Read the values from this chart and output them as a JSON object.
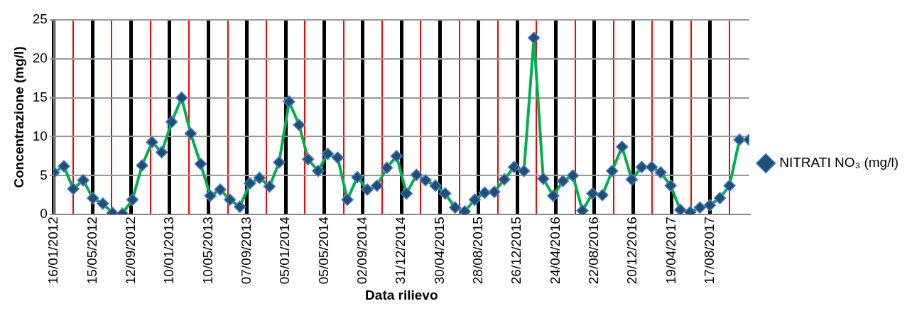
{
  "chart_data": {
    "type": "line",
    "xlabel": "Data rilievo",
    "ylabel": "Concentrazione (mg/l)",
    "x": [
      "2012-01-16",
      "2012-02-16",
      "2012-03-16",
      "2012-04-16",
      "2012-05-16",
      "2012-06-16",
      "2012-07-16",
      "2012-08-16",
      "2012-09-16",
      "2012-10-16",
      "2012-11-16",
      "2012-12-16",
      "2013-01-16",
      "2013-02-16",
      "2013-03-16",
      "2013-04-16",
      "2013-05-16",
      "2013-06-16",
      "2013-07-16",
      "2013-08-16",
      "2013-09-16",
      "2013-10-16",
      "2013-11-16",
      "2013-12-16",
      "2014-01-16",
      "2014-02-16",
      "2014-03-16",
      "2014-04-16",
      "2014-05-16",
      "2014-06-16",
      "2014-07-16",
      "2014-08-16",
      "2014-09-16",
      "2014-10-16",
      "2014-11-16",
      "2014-12-16",
      "2015-01-16",
      "2015-02-16",
      "2015-03-16",
      "2015-04-16",
      "2015-05-16",
      "2015-06-16",
      "2015-07-16",
      "2015-08-16",
      "2015-09-16",
      "2015-10-16",
      "2015-11-16",
      "2015-12-16",
      "2016-01-16",
      "2016-02-16",
      "2016-03-16",
      "2016-04-16",
      "2016-05-16",
      "2016-06-16",
      "2016-07-16",
      "2016-08-16",
      "2016-09-16",
      "2016-10-16",
      "2016-11-16",
      "2016-12-16",
      "2017-01-16",
      "2017-02-16",
      "2017-03-16",
      "2017-04-16",
      "2017-05-16",
      "2017-06-16",
      "2017-07-16",
      "2017-08-16",
      "2017-09-16",
      "2017-10-16",
      "2017-11-16",
      "2017-12-16"
    ],
    "series": [
      {
        "name": "NITRATI NO₃ (mg/l)",
        "color": "#00b050",
        "values": [
          5.4,
          6.2,
          3.3,
          4.4,
          2.1,
          1.4,
          0.2,
          0.1,
          1.9,
          6.3,
          9.3,
          8.0,
          11.9,
          15.0,
          10.4,
          6.5,
          2.4,
          3.2,
          1.9,
          1.0,
          4.0,
          4.7,
          3.6,
          6.7,
          14.5,
          11.5,
          7.1,
          5.6,
          7.8,
          7.3,
          1.9,
          4.8,
          3.2,
          3.7,
          6.0,
          7.5,
          2.7,
          5.1,
          4.4,
          3.7,
          2.7,
          0.9,
          0.4,
          1.9,
          2.8,
          2.9,
          4.5,
          6.1,
          5.6,
          22.7,
          4.6,
          2.4,
          4.3,
          5.0,
          0.5,
          2.7,
          2.5,
          5.6,
          8.7,
          4.5,
          6.1,
          6.1,
          5.4,
          3.7,
          0.6,
          0.3,
          0.9,
          1.2,
          2.1,
          3.7,
          9.6,
          9.6
        ]
      }
    ],
    "xlim": [
      "2012-01-16",
      "2017-12-16"
    ],
    "xticks": [
      {
        "value": "2012-01-16",
        "label": "16/01/2012"
      },
      {
        "value": "2012-03-16",
        "label": null
      },
      {
        "value": "2012-05-15",
        "label": "15/05/2012"
      },
      {
        "value": "2012-07-14",
        "label": null
      },
      {
        "value": "2012-09-12",
        "label": "12/09/2012"
      },
      {
        "value": "2012-11-11",
        "label": null
      },
      {
        "value": "2013-01-10",
        "label": "10/01/2013"
      },
      {
        "value": "2013-03-11",
        "label": null
      },
      {
        "value": "2013-05-10",
        "label": "10/05/2013"
      },
      {
        "value": "2013-07-09",
        "label": null
      },
      {
        "value": "2013-09-07",
        "label": "07/09/2013"
      },
      {
        "value": "2013-11-06",
        "label": null
      },
      {
        "value": "2014-01-05",
        "label": "05/01/2014"
      },
      {
        "value": "2014-03-06",
        "label": null
      },
      {
        "value": "2014-05-05",
        "label": "05/05/2014"
      },
      {
        "value": "2014-07-04",
        "label": null
      },
      {
        "value": "2014-09-02",
        "label": "02/09/2014"
      },
      {
        "value": "2014-11-01",
        "label": null
      },
      {
        "value": "2014-12-31",
        "label": "31/12/2014"
      },
      {
        "value": "2015-03-01",
        "label": null
      },
      {
        "value": "2015-04-30",
        "label": "30/04/2015"
      },
      {
        "value": "2015-06-29",
        "label": null
      },
      {
        "value": "2015-08-28",
        "label": "28/08/2015"
      },
      {
        "value": "2015-10-27",
        "label": null
      },
      {
        "value": "2015-12-26",
        "label": "26/12/2015"
      },
      {
        "value": "2016-02-24",
        "label": null
      },
      {
        "value": "2016-04-24",
        "label": "24/04/2016"
      },
      {
        "value": "2016-06-23",
        "label": null
      },
      {
        "value": "2016-08-22",
        "label": "22/08/2016"
      },
      {
        "value": "2016-10-21",
        "label": null
      },
      {
        "value": "2016-12-20",
        "label": "20/12/2016"
      },
      {
        "value": "2017-02-18",
        "label": null
      },
      {
        "value": "2017-04-19",
        "label": "19/04/2017"
      },
      {
        "value": "2017-06-18",
        "label": null
      },
      {
        "value": "2017-08-17",
        "label": "17/08/2017"
      },
      {
        "value": "2017-10-16",
        "label": null
      }
    ],
    "ylim": [
      0,
      25
    ],
    "yticks": [
      0,
      5,
      10,
      15,
      20,
      25
    ],
    "grid": true,
    "legend": "right",
    "marker": "diamond",
    "line_style": "solid"
  }
}
